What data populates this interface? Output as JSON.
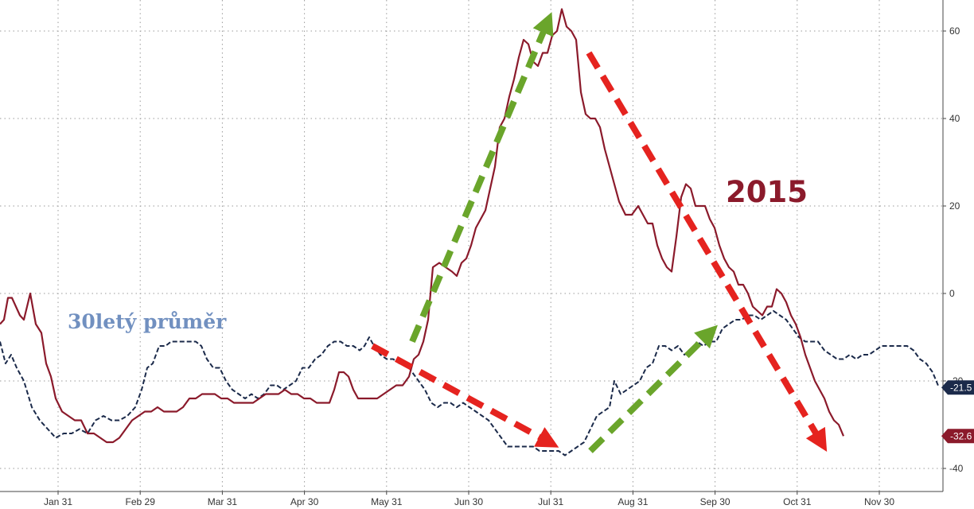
{
  "chart_data": {
    "type": "line",
    "x_ticks": [
      "Jan 31",
      "Feb 29",
      "Mar 31",
      "Apr 30",
      "May 31",
      "Jun 30",
      "Jul 31",
      "Aug 31",
      "Sep 30",
      "Oct 31",
      "Nov 30"
    ],
    "y_ticks": [
      "60",
      "40",
      "20",
      "0",
      "-20",
      "-40"
    ],
    "ylim": [
      -42,
      67
    ],
    "grid": true,
    "series": [
      {
        "name": "30letý průměr",
        "color": "#1b2a4a",
        "style": "dashed",
        "last_value_label": "-21.5",
        "values": [
          [
            0,
            -11
          ],
          [
            7,
            -16
          ],
          [
            14,
            -14
          ],
          [
            21,
            -17
          ],
          [
            30,
            -20
          ],
          [
            40,
            -26
          ],
          [
            50,
            -29
          ],
          [
            60,
            -31
          ],
          [
            70,
            -33
          ],
          [
            80,
            -32
          ],
          [
            90,
            -32
          ],
          [
            100,
            -31
          ],
          [
            110,
            -32
          ],
          [
            120,
            -29
          ],
          [
            130,
            -28
          ],
          [
            140,
            -29
          ],
          [
            150,
            -29
          ],
          [
            160,
            -28
          ],
          [
            170,
            -26
          ],
          [
            178,
            -22
          ],
          [
            185,
            -17
          ],
          [
            192,
            -16
          ],
          [
            200,
            -12
          ],
          [
            208,
            -12
          ],
          [
            215,
            -11
          ],
          [
            222,
            -11
          ],
          [
            230,
            -11
          ],
          [
            238,
            -11
          ],
          [
            246,
            -11
          ],
          [
            253,
            -12
          ],
          [
            260,
            -15
          ],
          [
            268,
            -17
          ],
          [
            276,
            -17
          ],
          [
            284,
            -20
          ],
          [
            292,
            -22
          ],
          [
            300,
            -23
          ],
          [
            308,
            -24
          ],
          [
            316,
            -23
          ],
          [
            324,
            -24
          ],
          [
            332,
            -23
          ],
          [
            340,
            -21
          ],
          [
            348,
            -21
          ],
          [
            356,
            -22
          ],
          [
            364,
            -21
          ],
          [
            372,
            -20
          ],
          [
            380,
            -17
          ],
          [
            388,
            -17
          ],
          [
            396,
            -15
          ],
          [
            404,
            -14
          ],
          [
            412,
            -12
          ],
          [
            420,
            -11
          ],
          [
            428,
            -11
          ],
          [
            436,
            -12
          ],
          [
            444,
            -12
          ],
          [
            452,
            -13
          ],
          [
            458,
            -12
          ],
          [
            464,
            -10
          ],
          [
            470,
            -12
          ],
          [
            478,
            -14
          ],
          [
            486,
            -15
          ],
          [
            494,
            -15
          ],
          [
            502,
            -16
          ],
          [
            510,
            -16
          ],
          [
            518,
            -18
          ],
          [
            526,
            -20
          ],
          [
            534,
            -22
          ],
          [
            542,
            -25
          ],
          [
            550,
            -26
          ],
          [
            558,
            -25
          ],
          [
            566,
            -25
          ],
          [
            574,
            -26
          ],
          [
            582,
            -25
          ],
          [
            590,
            -26
          ],
          [
            598,
            -27
          ],
          [
            606,
            -28
          ],
          [
            614,
            -29
          ],
          [
            622,
            -31
          ],
          [
            630,
            -33
          ],
          [
            638,
            -35
          ],
          [
            646,
            -35
          ],
          [
            654,
            -35
          ],
          [
            662,
            -35
          ],
          [
            670,
            -35
          ],
          [
            678,
            -36
          ],
          [
            686,
            -36
          ],
          [
            694,
            -36
          ],
          [
            702,
            -36
          ],
          [
            710,
            -37
          ],
          [
            718,
            -36
          ],
          [
            726,
            -35
          ],
          [
            734,
            -34
          ],
          [
            742,
            -31
          ],
          [
            750,
            -28
          ],
          [
            758,
            -27
          ],
          [
            766,
            -26
          ],
          [
            772,
            -20
          ],
          [
            780,
            -23
          ],
          [
            788,
            -22
          ],
          [
            796,
            -21
          ],
          [
            804,
            -20
          ],
          [
            812,
            -17
          ],
          [
            820,
            -16
          ],
          [
            828,
            -12
          ],
          [
            836,
            -12
          ],
          [
            844,
            -13
          ],
          [
            852,
            -12
          ],
          [
            860,
            -14
          ],
          [
            868,
            -13
          ],
          [
            876,
            -11
          ],
          [
            884,
            -12
          ],
          [
            892,
            -11
          ],
          [
            900,
            -11
          ],
          [
            908,
            -8
          ],
          [
            916,
            -7
          ],
          [
            924,
            -6
          ],
          [
            932,
            -6
          ],
          [
            940,
            -5
          ],
          [
            948,
            -5
          ],
          [
            956,
            -6
          ],
          [
            964,
            -5
          ],
          [
            972,
            -4
          ],
          [
            980,
            -5
          ],
          [
            988,
            -6
          ],
          [
            996,
            -8
          ],
          [
            1004,
            -10
          ],
          [
            1012,
            -11
          ],
          [
            1020,
            -11
          ],
          [
            1028,
            -11
          ],
          [
            1036,
            -13
          ],
          [
            1044,
            -14
          ],
          [
            1052,
            -15
          ],
          [
            1060,
            -15
          ],
          [
            1068,
            -14
          ],
          [
            1076,
            -15
          ],
          [
            1084,
            -14
          ],
          [
            1092,
            -14
          ],
          [
            1100,
            -13
          ],
          [
            1108,
            -12
          ],
          [
            1116,
            -12
          ],
          [
            1124,
            -12
          ],
          [
            1132,
            -12
          ],
          [
            1140,
            -12
          ],
          [
            1148,
            -13
          ],
          [
            1156,
            -15
          ],
          [
            1164,
            -16
          ],
          [
            1172,
            -18
          ],
          [
            1180,
            -21.5
          ]
        ]
      },
      {
        "name": "2015",
        "color": "#8b1a2b",
        "style": "solid",
        "last_value_label": "-32.6",
        "values": [
          [
            0,
            -7
          ],
          [
            5,
            -6
          ],
          [
            10,
            -1
          ],
          [
            15,
            -1
          ],
          [
            20,
            -3
          ],
          [
            25,
            -5
          ],
          [
            30,
            -6
          ],
          [
            38,
            0
          ],
          [
            45,
            -7
          ],
          [
            52,
            -9
          ],
          [
            58,
            -16
          ],
          [
            64,
            -19
          ],
          [
            70,
            -24
          ],
          [
            78,
            -27
          ],
          [
            86,
            -28
          ],
          [
            94,
            -29
          ],
          [
            102,
            -29
          ],
          [
            110,
            -32
          ],
          [
            118,
            -32
          ],
          [
            126,
            -33
          ],
          [
            134,
            -34
          ],
          [
            142,
            -34
          ],
          [
            150,
            -33
          ],
          [
            158,
            -31
          ],
          [
            166,
            -29
          ],
          [
            174,
            -28
          ],
          [
            182,
            -27
          ],
          [
            190,
            -27
          ],
          [
            198,
            -26
          ],
          [
            206,
            -27
          ],
          [
            214,
            -27
          ],
          [
            222,
            -27
          ],
          [
            230,
            -26
          ],
          [
            238,
            -24
          ],
          [
            246,
            -24
          ],
          [
            254,
            -23
          ],
          [
            262,
            -23
          ],
          [
            270,
            -23
          ],
          [
            278,
            -24
          ],
          [
            286,
            -24
          ],
          [
            294,
            -25
          ],
          [
            302,
            -25
          ],
          [
            310,
            -25
          ],
          [
            318,
            -25
          ],
          [
            326,
            -24
          ],
          [
            334,
            -23
          ],
          [
            342,
            -23
          ],
          [
            350,
            -23
          ],
          [
            358,
            -22
          ],
          [
            366,
            -23
          ],
          [
            374,
            -23
          ],
          [
            382,
            -24
          ],
          [
            390,
            -24
          ],
          [
            398,
            -25
          ],
          [
            406,
            -25
          ],
          [
            414,
            -25
          ],
          [
            420,
            -22
          ],
          [
            426,
            -18
          ],
          [
            432,
            -18
          ],
          [
            438,
            -19
          ],
          [
            444,
            -22
          ],
          [
            450,
            -24
          ],
          [
            458,
            -24
          ],
          [
            466,
            -24
          ],
          [
            474,
            -24
          ],
          [
            482,
            -23
          ],
          [
            490,
            -22
          ],
          [
            498,
            -21
          ],
          [
            506,
            -21
          ],
          [
            514,
            -19
          ],
          [
            520,
            -15
          ],
          [
            526,
            -14
          ],
          [
            532,
            -11
          ],
          [
            538,
            -6
          ],
          [
            544,
            6
          ],
          [
            552,
            7
          ],
          [
            560,
            6
          ],
          [
            568,
            5
          ],
          [
            574,
            4
          ],
          [
            580,
            7
          ],
          [
            586,
            8
          ],
          [
            592,
            11
          ],
          [
            598,
            15
          ],
          [
            604,
            17
          ],
          [
            610,
            19
          ],
          [
            616,
            24
          ],
          [
            622,
            29
          ],
          [
            628,
            38
          ],
          [
            634,
            40
          ],
          [
            640,
            45
          ],
          [
            646,
            49
          ],
          [
            652,
            54
          ],
          [
            658,
            58
          ],
          [
            664,
            57
          ],
          [
            670,
            53
          ],
          [
            676,
            52
          ],
          [
            682,
            55
          ],
          [
            688,
            55
          ],
          [
            694,
            59
          ],
          [
            700,
            60
          ],
          [
            706,
            65
          ],
          [
            712,
            61
          ],
          [
            718,
            60
          ],
          [
            724,
            58
          ],
          [
            730,
            46
          ],
          [
            736,
            41
          ],
          [
            742,
            40
          ],
          [
            748,
            40
          ],
          [
            754,
            38
          ],
          [
            760,
            33
          ],
          [
            766,
            29
          ],
          [
            772,
            25
          ],
          [
            778,
            21
          ],
          [
            786,
            18
          ],
          [
            794,
            18
          ],
          [
            802,
            20
          ],
          [
            808,
            18
          ],
          [
            814,
            16
          ],
          [
            820,
            16
          ],
          [
            826,
            11
          ],
          [
            832,
            8
          ],
          [
            838,
            6
          ],
          [
            844,
            5
          ],
          [
            850,
            13
          ],
          [
            856,
            22
          ],
          [
            862,
            25
          ],
          [
            868,
            24
          ],
          [
            874,
            20
          ],
          [
            880,
            20
          ],
          [
            886,
            20
          ],
          [
            892,
            17
          ],
          [
            898,
            15
          ],
          [
            904,
            11
          ],
          [
            910,
            8
          ],
          [
            916,
            6
          ],
          [
            922,
            5
          ],
          [
            928,
            2
          ],
          [
            934,
            2
          ],
          [
            940,
            0
          ],
          [
            946,
            -3
          ],
          [
            952,
            -4
          ],
          [
            958,
            -5
          ],
          [
            964,
            -3
          ],
          [
            970,
            -3
          ],
          [
            976,
            1
          ],
          [
            982,
            0
          ],
          [
            988,
            -2
          ],
          [
            994,
            -5
          ],
          [
            1000,
            -7
          ],
          [
            1006,
            -10
          ],
          [
            1012,
            -14
          ],
          [
            1018,
            -17
          ],
          [
            1024,
            -20
          ],
          [
            1030,
            -22
          ],
          [
            1036,
            -24
          ],
          [
            1042,
            -27
          ],
          [
            1048,
            -29
          ],
          [
            1054,
            -30
          ],
          [
            1060,
            -32.6
          ]
        ]
      }
    ]
  },
  "annotations": {
    "series_label": "30letý průměr",
    "series_label_color": "#7190c0",
    "year_label": "2015",
    "year_label_color": "#8b1a2b",
    "arrows": [
      {
        "color": "#e5231f",
        "from": [
          468,
          -12
        ],
        "to": [
          690,
          -34
        ]
      },
      {
        "color": "#6aa52b",
        "from": [
          518,
          -11
        ],
        "to": [
          688,
          62
        ]
      },
      {
        "color": "#6aa52b",
        "from": [
          742,
          -36
        ],
        "to": [
          892,
          -9
        ]
      },
      {
        "color": "#e5231f",
        "from": [
          740,
          55
        ],
        "to": [
          1032,
          -34
        ]
      }
    ]
  }
}
